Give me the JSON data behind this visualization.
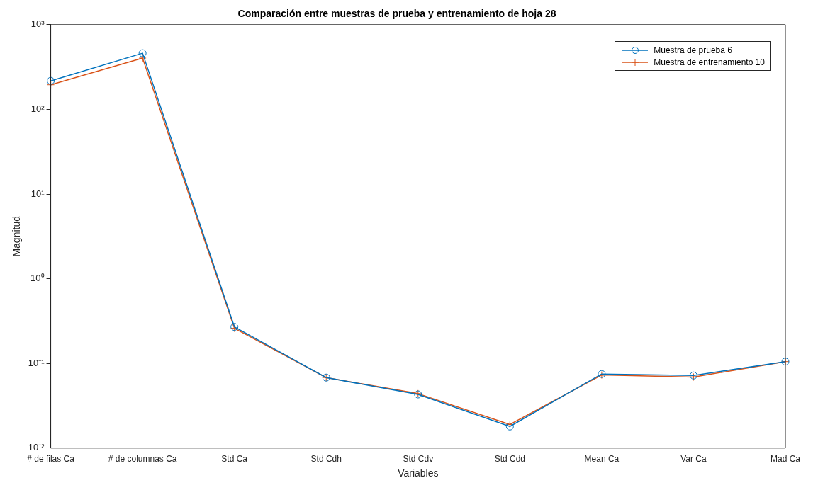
{
  "chart_data": {
    "type": "line",
    "title": "Comparación entre muestras de prueba y entrenamiento de hoja 28",
    "xlabel": "Variables",
    "ylabel": "Magnitud",
    "categories": [
      "# de filas Ca",
      "# de columnas Ca",
      "Std Ca",
      "Std Cdh",
      "Std Cdv",
      "Std Cdd",
      "Mean Ca",
      "Var Ca",
      "Mad Ca"
    ],
    "series": [
      {
        "name": "Muestra de prueba 6",
        "color": "#0072bd",
        "marker": "circle",
        "values": [
          217,
          460,
          0.27,
          0.068,
          0.043,
          0.018,
          0.075,
          0.072,
          0.105
        ]
      },
      {
        "name": "Muestra de entrenamiento 10",
        "color": "#d95319",
        "marker": "cross",
        "values": [
          195,
          403,
          0.26,
          0.068,
          0.044,
          0.019,
          0.073,
          0.069,
          0.105
        ]
      }
    ],
    "log": "y",
    "ylim": [
      0.01,
      1000
    ],
    "yticks": [
      {
        "value": 0.01,
        "label": "10⁻²"
      },
      {
        "value": 0.1,
        "label": "10⁻¹"
      },
      {
        "value": 1,
        "label": "10⁰"
      },
      {
        "value": 10,
        "label": "10¹"
      },
      {
        "value": 100,
        "label": "10²"
      },
      {
        "value": 1000,
        "label": "10³"
      }
    ],
    "grid": false,
    "legend": "top right",
    "line_style": "solid"
  }
}
